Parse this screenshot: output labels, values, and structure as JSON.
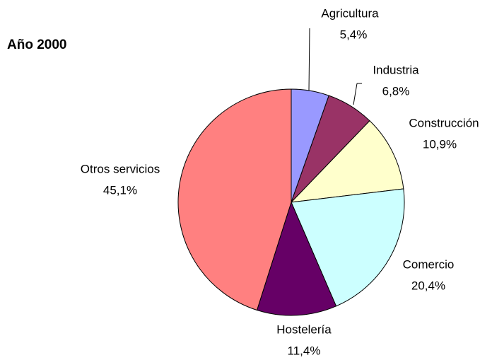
{
  "chart_data": {
    "type": "pie",
    "title": "Año 2000",
    "categories": [
      "Agricultura",
      "Industria",
      "Construcción",
      "Comercio",
      "Hostelería",
      "Otros servicios"
    ],
    "values": [
      5.4,
      6.8,
      10.9,
      20.4,
      11.4,
      45.1
    ],
    "value_labels": [
      "5,4%",
      "6,8%",
      "10,9%",
      "20,4%",
      "11,4%",
      "45,1%"
    ],
    "colors": [
      "#9999ff",
      "#993366",
      "#ffffcc",
      "#ccffff",
      "#660066",
      "#ff8080"
    ]
  }
}
